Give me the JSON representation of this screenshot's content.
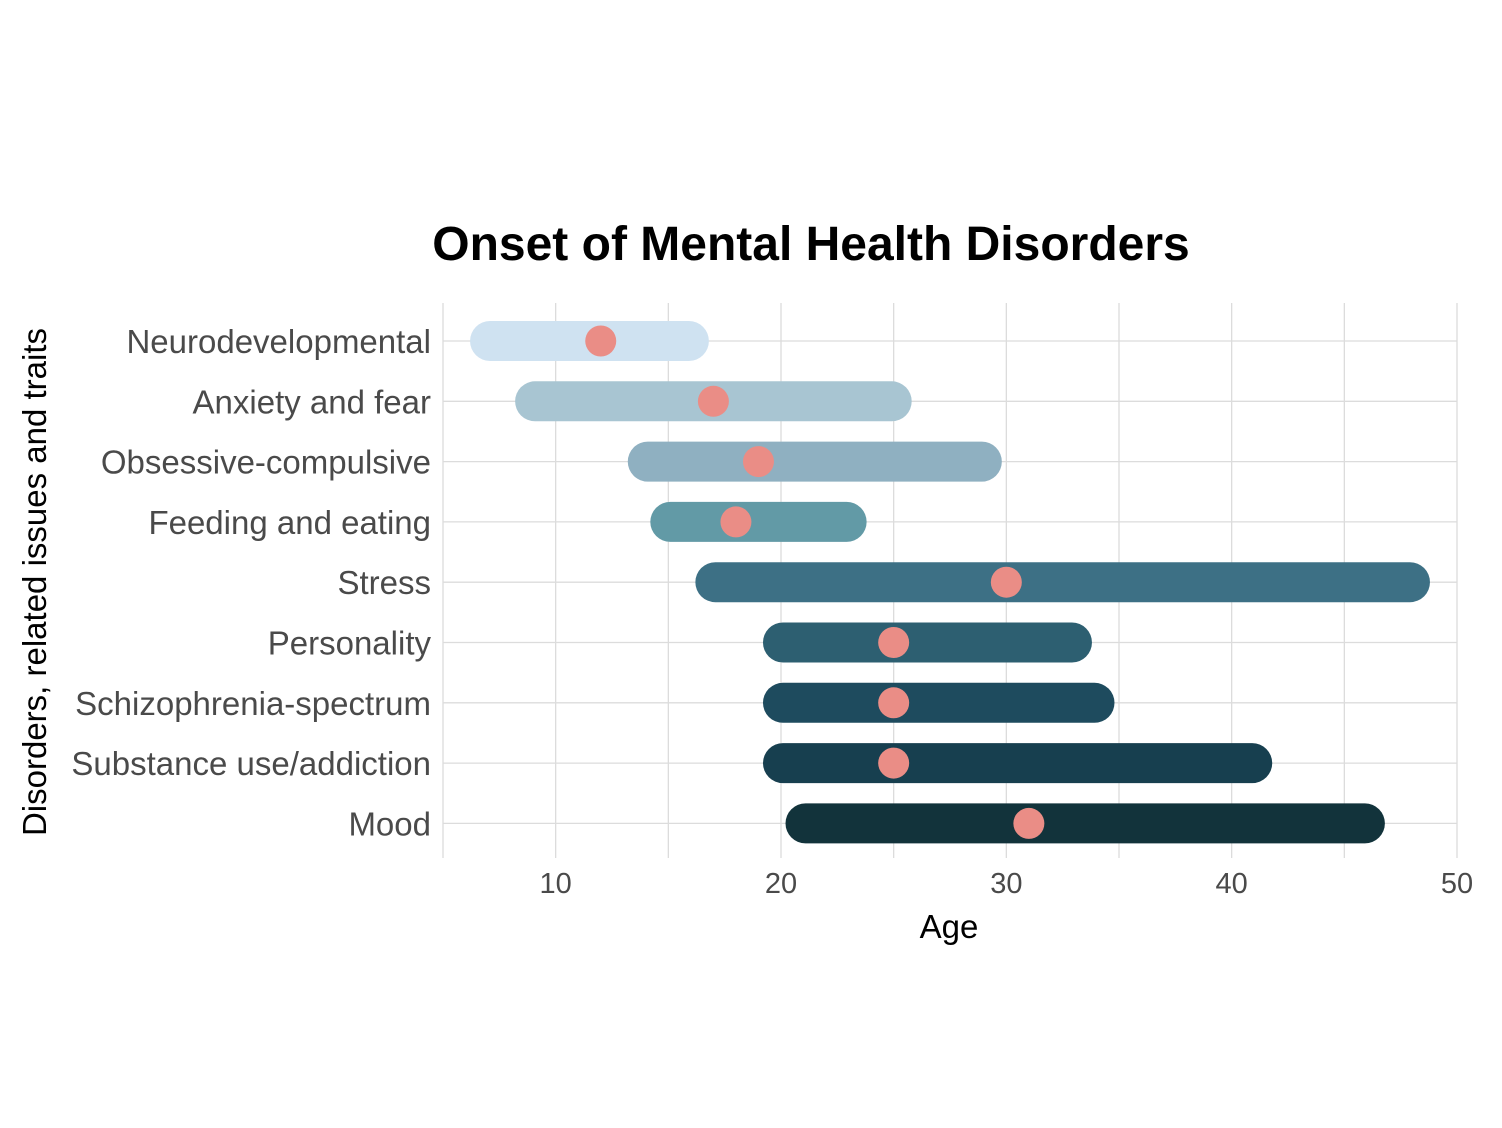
{
  "chart_data": {
    "type": "range-dot",
    "title": "Onset of Mental Health Disorders",
    "xlabel": "Age",
    "ylabel": "Disorders, related issues and traits",
    "xlim": [
      5,
      50
    ],
    "xticks": [
      10,
      20,
      30,
      40,
      50
    ],
    "grid": true,
    "categories": [
      "Neurodevelopmental",
      "Anxiety and fear",
      "Obsessive-compulsive",
      "Feeding and eating",
      "Stress",
      "Personality",
      "Schizophrenia-spectrum",
      "Substance use/addiction",
      "Mood"
    ],
    "series": [
      {
        "values": [
          {
            "start": 6.2,
            "end": 16.8,
            "peak": 12
          },
          {
            "start": 8.2,
            "end": 25.8,
            "peak": 17
          },
          {
            "start": 13.2,
            "end": 29.8,
            "peak": 19
          },
          {
            "start": 14.2,
            "end": 23.8,
            "peak": 18
          },
          {
            "start": 16.2,
            "end": 48.8,
            "peak": 30
          },
          {
            "start": 19.2,
            "end": 33.8,
            "peak": 25
          },
          {
            "start": 19.2,
            "end": 34.8,
            "peak": 25
          },
          {
            "start": 19.2,
            "end": 41.8,
            "peak": 25
          },
          {
            "start": 20.2,
            "end": 46.8,
            "peak": 31
          }
        ]
      }
    ],
    "colors": {
      "bars": [
        "#cfe2f1",
        "#a8c5d2",
        "#8fb0c1",
        "#629aa6",
        "#3d7085",
        "#2d5f71",
        "#1e4b5e",
        "#173f4f",
        "#12333b"
      ],
      "peak_dot": "#ea8d86",
      "grid": "#dcdcdc"
    }
  }
}
